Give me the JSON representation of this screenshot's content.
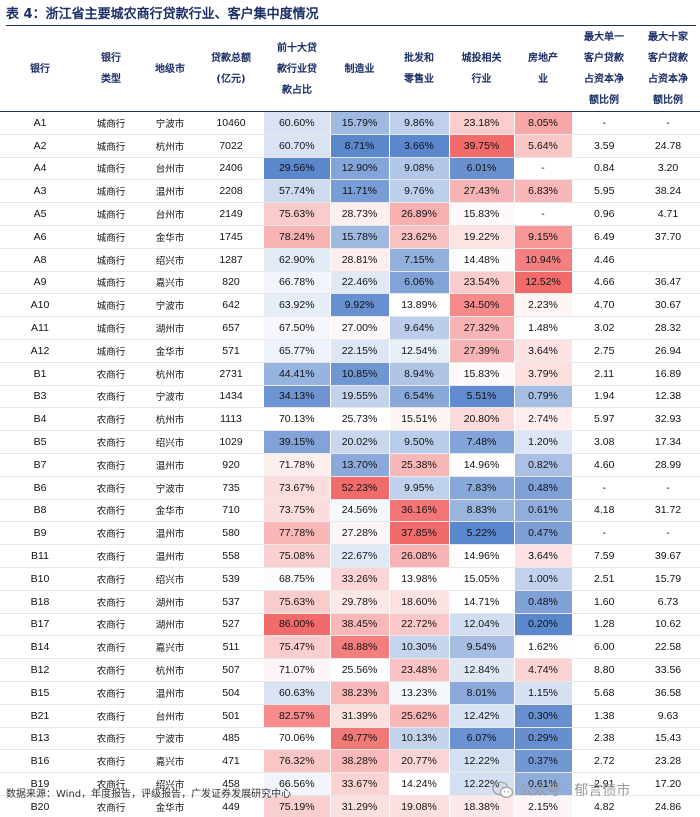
{
  "title": "表 4：浙江省主要城农商行贷款行业、客户集中度情况",
  "header": [
    "银行",
    "银行\n类型",
    "地级市",
    "贷款总额\n(亿元)",
    "前十大贷\n款行业贷\n款占比",
    "制造业",
    "批发和\n零售业",
    "城投相关\n行业",
    "房地产\n业",
    "最大单一\n客户贷款\n占资本净\n额比例",
    "最大十家\n客户贷款\n占资本净\n额比例"
  ],
  "rows": [
    [
      "A1",
      "城商行",
      "宁波市",
      "10460",
      "60.60%",
      "15.79%",
      "9.86%",
      "23.18%",
      "8.05%",
      "-",
      "-"
    ],
    [
      "A2",
      "城商行",
      "杭州市",
      "7022",
      "60.70%",
      "8.71%",
      "3.66%",
      "39.75%",
      "5.64%",
      "3.59",
      "24.78"
    ],
    [
      "A4",
      "城商行",
      "台州市",
      "2406",
      "29.56%",
      "12.90%",
      "9.08%",
      "6.01%",
      "-",
      "0.84",
      "3.20"
    ],
    [
      "A3",
      "城商行",
      "温州市",
      "2208",
      "57.74%",
      "11.71%",
      "9.76%",
      "27.43%",
      "6.83%",
      "5.95",
      "38.24"
    ],
    [
      "A5",
      "城商行",
      "台州市",
      "2149",
      "75.63%",
      "28.73%",
      "26.89%",
      "15.83%",
      "-",
      "0.96",
      "4.71"
    ],
    [
      "A6",
      "城商行",
      "金华市",
      "1745",
      "78.24%",
      "15.78%",
      "23.62%",
      "19.22%",
      "9.15%",
      "6.49",
      "37.70"
    ],
    [
      "A8",
      "城商行",
      "绍兴市",
      "1287",
      "62.90%",
      "28.81%",
      "7.15%",
      "14.48%",
      "10.94%",
      "4.46",
      ""
    ],
    [
      "A9",
      "城商行",
      "嘉兴市",
      "820",
      "66.78%",
      "22.46%",
      "6.06%",
      "23.54%",
      "12.52%",
      "4.66",
      "36.47"
    ],
    [
      "A10",
      "城商行",
      "宁波市",
      "642",
      "63.92%",
      "9.92%",
      "13.89%",
      "34.50%",
      "2.23%",
      "4.70",
      "30.67"
    ],
    [
      "A11",
      "城商行",
      "湖州市",
      "657",
      "67.50%",
      "27.00%",
      "9.64%",
      "27.32%",
      "1.48%",
      "3.02",
      "28.32"
    ],
    [
      "A12",
      "城商行",
      "金华市",
      "571",
      "65.77%",
      "22.15%",
      "12.54%",
      "27.39%",
      "3.64%",
      "2.75",
      "26.94"
    ],
    [
      "B1",
      "农商行",
      "杭州市",
      "2731",
      "44.41%",
      "10.85%",
      "8.94%",
      "15.83%",
      "3.79%",
      "2.11",
      "16.89"
    ],
    [
      "B3",
      "农商行",
      "宁波市",
      "1434",
      "34.13%",
      "19.55%",
      "6.54%",
      "5.51%",
      "0.79%",
      "1.94",
      "12.38"
    ],
    [
      "B4",
      "农商行",
      "杭州市",
      "1113",
      "70.13%",
      "25.73%",
      "15.51%",
      "20.80%",
      "2.74%",
      "5.97",
      "32.93"
    ],
    [
      "B5",
      "农商行",
      "绍兴市",
      "1029",
      "39.15%",
      "20.02%",
      "9.50%",
      "7.48%",
      "1.20%",
      "3.08",
      "17.34"
    ],
    [
      "B7",
      "农商行",
      "温州市",
      "920",
      "71.78%",
      "13.70%",
      "25.38%",
      "14.96%",
      "0.82%",
      "4.60",
      "28.99"
    ],
    [
      "B6",
      "农商行",
      "宁波市",
      "735",
      "73.67%",
      "52.23%",
      "9.95%",
      "7.83%",
      "0.48%",
      "-",
      "-"
    ],
    [
      "B8",
      "农商行",
      "金华市",
      "710",
      "73.75%",
      "24.56%",
      "36.16%",
      "8.83%",
      "0.61%",
      "4.18",
      "31.72"
    ],
    [
      "B9",
      "农商行",
      "温州市",
      "580",
      "77.78%",
      "27.28%",
      "37.85%",
      "5.22%",
      "0.47%",
      "-",
      "-"
    ],
    [
      "B11",
      "农商行",
      "温州市",
      "558",
      "75.08%",
      "22.67%",
      "26.08%",
      "14.96%",
      "3.64%",
      "7.59",
      "39.67"
    ],
    [
      "B10",
      "农商行",
      "绍兴市",
      "539",
      "68.75%",
      "33.26%",
      "13.98%",
      "15.05%",
      "1.00%",
      "2.51",
      "15.79"
    ],
    [
      "B18",
      "农商行",
      "湖州市",
      "537",
      "75.63%",
      "29.78%",
      "18.60%",
      "14.71%",
      "0.48%",
      "1.60",
      "6.73"
    ],
    [
      "B17",
      "农商行",
      "湖州市",
      "527",
      "86.00%",
      "38.45%",
      "22.72%",
      "12.04%",
      "0.20%",
      "1.28",
      "10.62"
    ],
    [
      "B14",
      "农商行",
      "嘉兴市",
      "511",
      "75.47%",
      "48.88%",
      "10.30%",
      "9.54%",
      "1.62%",
      "6.00",
      "22.58"
    ],
    [
      "B12",
      "农商行",
      "杭州市",
      "507",
      "71.07%",
      "25.56%",
      "23.48%",
      "12.84%",
      "4.74%",
      "8.80",
      "33.56"
    ],
    [
      "B15",
      "农商行",
      "温州市",
      "504",
      "60.63%",
      "38.23%",
      "13.23%",
      "8.01%",
      "1.15%",
      "5.68",
      "36.58"
    ],
    [
      "B21",
      "农商行",
      "台州市",
      "501",
      "82.57%",
      "31.39%",
      "25.62%",
      "12.42%",
      "0.30%",
      "1.38",
      "9.63"
    ],
    [
      "B13",
      "农商行",
      "宁波市",
      "485",
      "70.06%",
      "49.77%",
      "10.13%",
      "6.07%",
      "0.29%",
      "2.38",
      "15.43"
    ],
    [
      "B16",
      "农商行",
      "嘉兴市",
      "471",
      "76.32%",
      "38.28%",
      "20.77%",
      "12.22%",
      "0.37%",
      "2.72",
      "23.28"
    ],
    [
      "B19",
      "农商行",
      "绍兴市",
      "458",
      "66.56%",
      "33.67%",
      "14.24%",
      "12.22%",
      "0.61%",
      "2.91",
      "17.20"
    ],
    [
      "B20",
      "农商行",
      "金华市",
      "449",
      "75.19%",
      "31.29%",
      "19.08%",
      "18.38%",
      "2.15%",
      "4.82",
      "24.86"
    ]
  ],
  "heatmap_columns": [
    4,
    5,
    6,
    7,
    8
  ],
  "colors": {
    "title": "#1c2f67",
    "heat_low": "#5b87cc",
    "heat_mid": "#ffffff",
    "heat_high": "#f26b6b"
  },
  "source": "数据来源：Wind，年度报告，评级报告，广发证券发展研究中心",
  "watermark": "公众号 · 郁言债市"
}
